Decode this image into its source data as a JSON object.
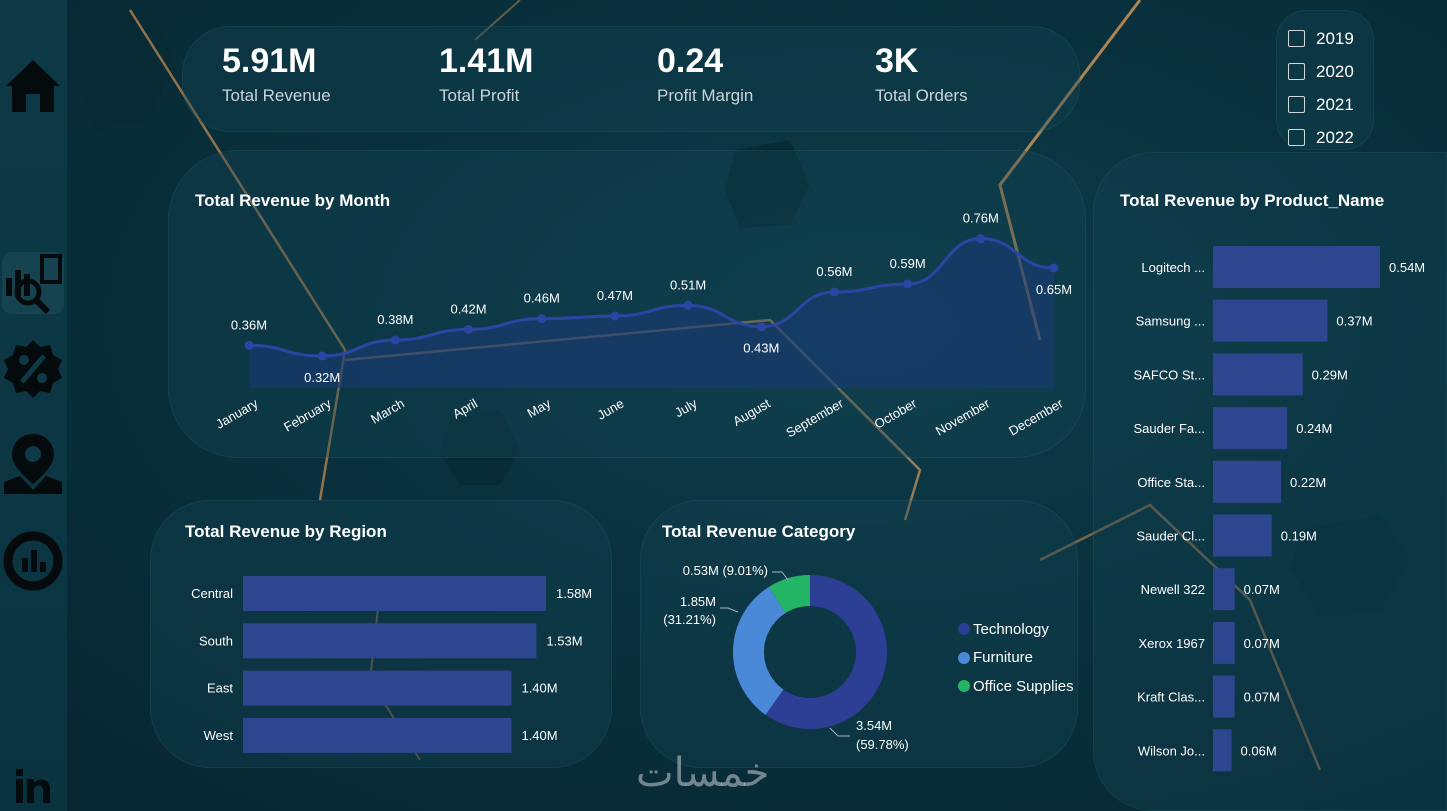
{
  "kpis": [
    {
      "value": "5.91M",
      "label": "Total Revenue"
    },
    {
      "value": "1.41M",
      "label": "Total Profit"
    },
    {
      "value": "0.24",
      "label": "Profit Margin"
    },
    {
      "value": "3K",
      "label": "Total Orders"
    }
  ],
  "years": [
    "2019",
    "2020",
    "2021",
    "2022"
  ],
  "colors": {
    "bar": "#2e4690",
    "line": "#2c45a3",
    "technology": "#2c3f94",
    "furniture": "#4a88d8",
    "office_supplies": "#23b565",
    "accent": "#d39a5a"
  },
  "icons": [
    "home-icon",
    "analytics-icon",
    "percent-badge-icon",
    "map-pin-icon",
    "chart-circle-icon",
    "linkedin-icon"
  ],
  "watermark": "خمسات",
  "chart_data": [
    {
      "type": "area",
      "title": "Total Revenue by Month",
      "categories": [
        "January",
        "February",
        "March",
        "April",
        "May",
        "June",
        "July",
        "August",
        "September",
        "October",
        "November",
        "December"
      ],
      "values": [
        0.36,
        0.32,
        0.38,
        0.42,
        0.46,
        0.47,
        0.51,
        0.43,
        0.56,
        0.59,
        0.76,
        0.65
      ],
      "data_labels": [
        "0.36M",
        "0.32M",
        "0.38M",
        "0.42M",
        "0.46M",
        "0.47M",
        "0.51M",
        "0.43M",
        "0.56M",
        "0.59M",
        "0.76M",
        "0.65M"
      ],
      "grid": false
    },
    {
      "type": "bar",
      "orientation": "horizontal",
      "title": "Total Revenue by Product_Name",
      "categories": [
        "Logitech ...",
        "Samsung ...",
        "SAFCO St...",
        "Sauder Fa...",
        "Office Sta...",
        "Sauder Cl...",
        "Newell 322",
        "Xerox 1967",
        "Kraft Clas...",
        "Wilson Jo..."
      ],
      "values": [
        0.54,
        0.37,
        0.29,
        0.24,
        0.22,
        0.19,
        0.07,
        0.07,
        0.07,
        0.06
      ],
      "data_labels": [
        "0.54M",
        "0.37M",
        "0.29M",
        "0.24M",
        "0.22M",
        "0.19M",
        "0.07M",
        "0.07M",
        "0.07M",
        "0.06M"
      ]
    },
    {
      "type": "bar",
      "orientation": "horizontal",
      "title": "Total Revenue by Region",
      "categories": [
        "Central",
        "South",
        "East",
        "West"
      ],
      "values": [
        1.58,
        1.53,
        1.4,
        1.4
      ],
      "data_labels": [
        "1.58M",
        "1.53M",
        "1.40M",
        "1.40M"
      ]
    },
    {
      "type": "pie",
      "variant": "donut",
      "title": "Total Revenue Category",
      "categories": [
        "Technology",
        "Furniture",
        "Office Supplies"
      ],
      "values": [
        3.54,
        1.85,
        0.53
      ],
      "percents": [
        59.78,
        31.21,
        9.01
      ],
      "data_labels": [
        "3.54M",
        "1.85M",
        "0.53M (9.01%)"
      ],
      "percent_labels": [
        "(59.78%)",
        "(31.21%)",
        ""
      ],
      "legend": "right"
    }
  ]
}
